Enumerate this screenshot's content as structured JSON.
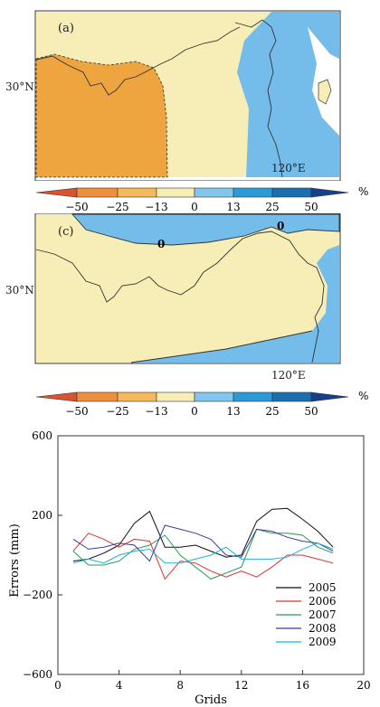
{
  "map_a": {
    "label": "(a)",
    "lat_label": "30°N",
    "lon_label": "120°E",
    "colors": {
      "dark_orange": "#eea53f",
      "yellow": "#f6eeb6",
      "blue": "#74bdea",
      "sea": "#ffffff"
    }
  },
  "colorbar_a": {
    "ticks": [
      "−50",
      "−25",
      "−13",
      "0",
      "13",
      "25",
      "50"
    ],
    "unit": "%",
    "colors": [
      "#d9532c",
      "#ee8f3e",
      "#f6b95a",
      "#f6eeb6",
      "#82c6ee",
      "#2a9bd7",
      "#1a6fae",
      "#173f8a"
    ]
  },
  "map_c": {
    "label": "(c)",
    "lat_label": "30°N",
    "lon_label": "120°E",
    "contour_labels": [
      "0",
      "0"
    ],
    "colors": {
      "yellow": "#f6eeb6",
      "blue": "#74bdea"
    }
  },
  "colorbar_c": {
    "ticks": [
      "−50",
      "−25",
      "−13",
      "0",
      "13",
      "25",
      "50"
    ],
    "unit": "%"
  },
  "chart_data": {
    "type": "line",
    "xlabel": "Grids",
    "ylabel": "Errors (mm)",
    "xlim": [
      0,
      20
    ],
    "ylim": [
      -600,
      600
    ],
    "x_ticks": [
      "0",
      "4",
      "8",
      "12",
      "16",
      "20"
    ],
    "y_ticks": [
      "600",
      "200",
      "−200",
      "−600"
    ],
    "legend_position": "bottom-right",
    "x": [
      1,
      2,
      3,
      4,
      5,
      6,
      7,
      8,
      9,
      10,
      11,
      12,
      13,
      14,
      15,
      16,
      17,
      18
    ],
    "series": [
      {
        "name": "2005",
        "color": "#111111",
        "values": [
          -30,
          -20,
          10,
          50,
          160,
          220,
          40,
          40,
          50,
          20,
          -10,
          0,
          170,
          230,
          235,
          180,
          120,
          40
        ]
      },
      {
        "name": "2006",
        "color": "#e0302a",
        "values": [
          20,
          110,
          80,
          40,
          80,
          70,
          -120,
          -30,
          -40,
          -80,
          -110,
          -80,
          -110,
          -60,
          0,
          0,
          -20,
          -40
        ]
      },
      {
        "name": "2007",
        "color": "#21a04a",
        "values": [
          20,
          -50,
          -50,
          -30,
          30,
          50,
          100,
          0,
          -60,
          -120,
          -90,
          -60,
          130,
          110,
          110,
          100,
          40,
          10
        ]
      },
      {
        "name": "2008",
        "color": "#3a3a9c",
        "values": [
          80,
          30,
          40,
          60,
          50,
          -30,
          150,
          130,
          110,
          80,
          0,
          -10,
          130,
          120,
          90,
          70,
          60,
          20
        ]
      },
      {
        "name": "2009",
        "color": "#19b4e0",
        "values": [
          -40,
          -20,
          -40,
          0,
          20,
          30,
          -40,
          -40,
          -20,
          0,
          40,
          -20,
          -20,
          -20,
          -10,
          30,
          60,
          30
        ]
      }
    ]
  }
}
